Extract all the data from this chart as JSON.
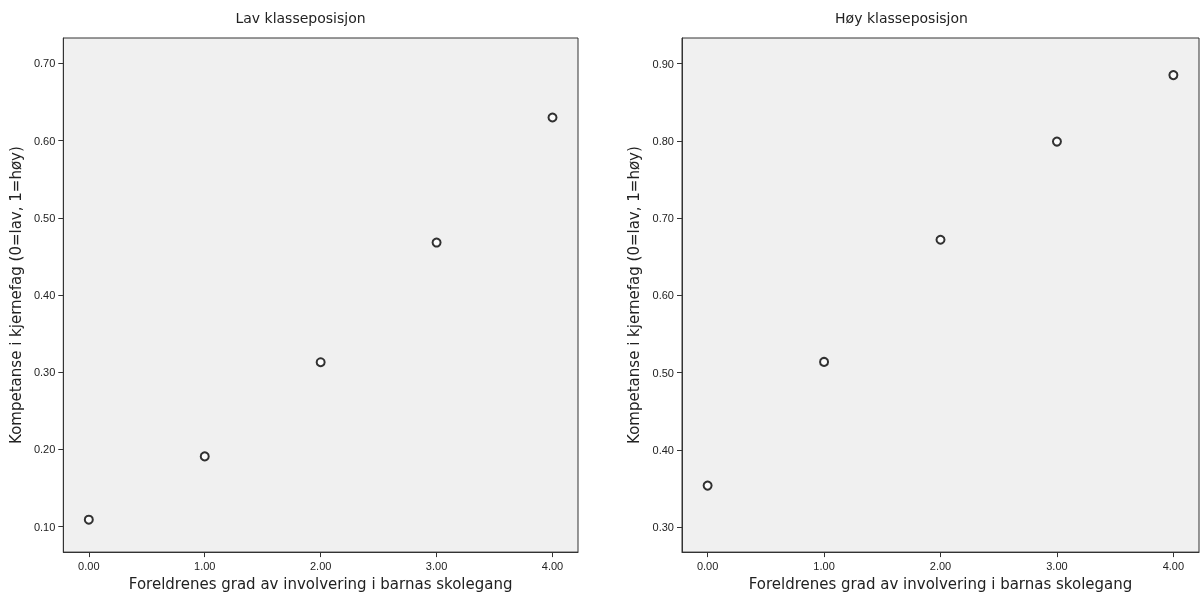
{
  "chart_data": [
    {
      "type": "scatter",
      "title": "Lav klasseposisjon",
      "xlabel": "Foreldrenes grad av involvering i barnas skolegang",
      "ylabel": "Kompetanse i kjernefag (0=lav, 1=høy)",
      "x": [
        0,
        1,
        2,
        3,
        4
      ],
      "series": [
        {
          "color": "#000000",
          "values": [
            0.109,
            0.191,
            0.313,
            0.468,
            0.63
          ]
        }
      ],
      "xlim": [
        -0.22,
        4.22
      ],
      "xticks": [
        {
          "value": 0,
          "label": "0.00"
        },
        {
          "value": 1,
          "label": "1.00"
        },
        {
          "value": 2,
          "label": "2.00"
        },
        {
          "value": 3,
          "label": "3.00"
        },
        {
          "value": 4,
          "label": "4.00"
        }
      ],
      "ylim": [
        0.067,
        0.733
      ],
      "yticks": [
        {
          "value": 0.1,
          "label": "0.10"
        },
        {
          "value": 0.2,
          "label": "0.20"
        },
        {
          "value": 0.3,
          "label": "0.30"
        },
        {
          "value": 0.4,
          "label": "0.40"
        },
        {
          "value": 0.5,
          "label": "0.50"
        },
        {
          "value": 0.6,
          "label": "0.60"
        },
        {
          "value": 0.7,
          "label": "0.70"
        }
      ],
      "marker": "circle"
    },
    {
      "type": "scatter",
      "title": "Høy klasseposisjon",
      "xlabel": "Foreldrenes grad av involvering i barnas skolegang",
      "ylabel": "Kompetanse i kjernefag (0=lav, 1=høy)",
      "x": [
        0,
        1,
        2,
        3,
        4
      ],
      "series": [
        {
          "color": "#000000",
          "values": [
            0.354,
            0.514,
            0.672,
            0.799,
            0.885
          ]
        }
      ],
      "xlim": [
        -0.22,
        4.22
      ],
      "xticks": [
        {
          "value": 0,
          "label": "0.00"
        },
        {
          "value": 1,
          "label": "1.00"
        },
        {
          "value": 2,
          "label": "2.00"
        },
        {
          "value": 3,
          "label": "3.00"
        },
        {
          "value": 4,
          "label": "4.00"
        }
      ],
      "ylim": [
        0.268,
        0.933
      ],
      "yticks": [
        {
          "value": 0.3,
          "label": "0.30"
        },
        {
          "value": 0.4,
          "label": "0.40"
        },
        {
          "value": 0.5,
          "label": "0.50"
        },
        {
          "value": 0.6,
          "label": "0.60"
        },
        {
          "value": 0.7,
          "label": "0.70"
        },
        {
          "value": 0.8,
          "label": "0.80"
        },
        {
          "value": 0.9,
          "label": "0.90"
        }
      ],
      "marker": "circle"
    }
  ]
}
